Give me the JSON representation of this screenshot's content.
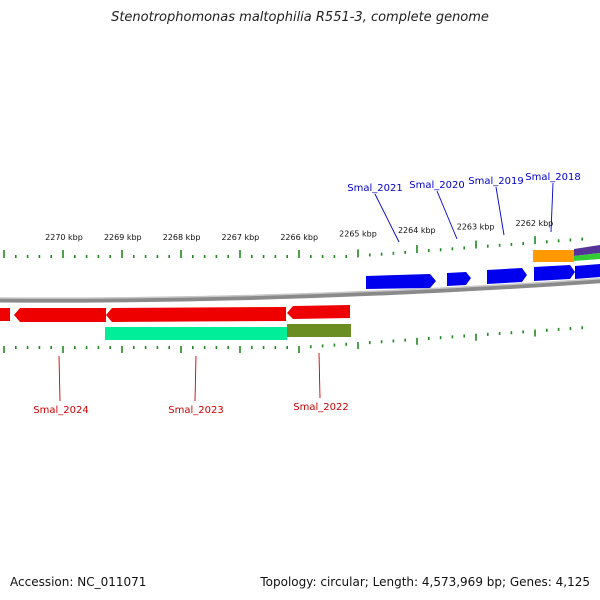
{
  "header": {
    "title": "Stenotrophomonas maltophilia R551-3, complete genome"
  },
  "footer": {
    "accession": "Accession: NC_011071",
    "summary": "Topology: circular; Length: 4,573,969 bp; Genes: 4,125"
  },
  "scale": {
    "unit": "kbp",
    "ticks": [
      {
        "label": "2270 kbp",
        "kbp": 2270
      },
      {
        "label": "2269 kbp",
        "kbp": 2269
      },
      {
        "label": "2268 kbp",
        "kbp": 2268
      },
      {
        "label": "2267 kbp",
        "kbp": 2267
      },
      {
        "label": "2266 kbp",
        "kbp": 2266
      },
      {
        "label": "2265 kbp",
        "kbp": 2265
      },
      {
        "label": "2264 kbp",
        "kbp": 2264
      },
      {
        "label": "2263 kbp",
        "kbp": 2263
      },
      {
        "label": "2262 kbp",
        "kbp": 2262
      }
    ]
  },
  "genes": [
    {
      "label": "Smal_2018",
      "strand": "forward",
      "color": "#0000ee"
    },
    {
      "label": "Smal_2019",
      "strand": "forward",
      "color": "#0000ee"
    },
    {
      "label": "Smal_2020",
      "strand": "forward",
      "color": "#0000ee"
    },
    {
      "label": "Smal_2021",
      "strand": "forward",
      "color": "#0000ee"
    },
    {
      "label": "Smal_2022",
      "strand": "reverse",
      "color": "#ee0000"
    },
    {
      "label": "Smal_2023",
      "strand": "reverse",
      "color": "#ee0000"
    },
    {
      "label": "Smal_2024",
      "strand": "reverse",
      "color": "#ee0000"
    }
  ],
  "colors": {
    "forward_cds": "#0000ee",
    "reverse_cds": "#ee0000",
    "forward_label": "#0000cc",
    "reverse_label": "#cc0000",
    "feature_green": "#00dd88",
    "feature_olive": "#6b8e23",
    "feature_orange": "#ff9900",
    "feature_purple": "#553399",
    "backbone": "#888888",
    "gc_tick": "#228822"
  }
}
